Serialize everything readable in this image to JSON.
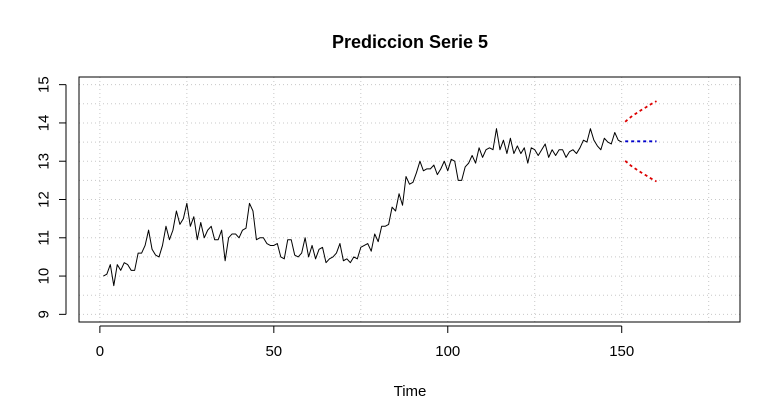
{
  "chart_data": {
    "type": "line",
    "title": "Prediccion Serie 5",
    "xlabel": "Time",
    "ylabel": "",
    "xlim": [
      -6,
      184
    ],
    "ylim": [
      8.8,
      15.2
    ],
    "xticks": [
      0,
      50,
      100,
      150
    ],
    "yticks": [
      9,
      10,
      11,
      12,
      13,
      14,
      15
    ],
    "grid": true,
    "colors": {
      "series": "#000000",
      "forecast": "#0000cc",
      "interval": "#dd0000",
      "grid": "#c8c8c8"
    },
    "series": [
      {
        "x": [
          1,
          2,
          3,
          4,
          5,
          6,
          7,
          8,
          9,
          10,
          11,
          12,
          13,
          14,
          15,
          16,
          17,
          18,
          19,
          20,
          21,
          22,
          23,
          24,
          25,
          26,
          27,
          28,
          29,
          30,
          31,
          32,
          33,
          34,
          35,
          36,
          37,
          38,
          39,
          40,
          41,
          42,
          43,
          44,
          45,
          46,
          47,
          48,
          49,
          50,
          51,
          52,
          53,
          54,
          55,
          56,
          57,
          58,
          59,
          60,
          61,
          62,
          63,
          64,
          65,
          66,
          67,
          68,
          69,
          70,
          71,
          72,
          73,
          74,
          75,
          76,
          77,
          78,
          79,
          80,
          81,
          82,
          83,
          84,
          85,
          86,
          87,
          88,
          89,
          90,
          91,
          92,
          93,
          94,
          95,
          96,
          97,
          98,
          99,
          100,
          101,
          102,
          103,
          104,
          105,
          106,
          107,
          108,
          109,
          110,
          111,
          112,
          113,
          114,
          115,
          116,
          117,
          118,
          119,
          120,
          121,
          122,
          123,
          124,
          125,
          126,
          127,
          128,
          129,
          130,
          131,
          132,
          133,
          134,
          135,
          136,
          137,
          138,
          139,
          140,
          141,
          142,
          143,
          144,
          145,
          146,
          147,
          148,
          149,
          150
        ],
        "values": [
          10.0,
          10.05,
          10.3,
          9.75,
          10.3,
          10.15,
          10.35,
          10.3,
          10.15,
          10.15,
          10.6,
          10.6,
          10.8,
          11.2,
          10.7,
          10.55,
          10.5,
          10.8,
          11.3,
          10.95,
          11.2,
          11.7,
          11.35,
          11.5,
          11.9,
          11.3,
          11.55,
          10.95,
          11.4,
          11.0,
          11.2,
          11.3,
          10.95,
          10.95,
          11.2,
          10.4,
          11.0,
          11.1,
          11.1,
          11.0,
          11.2,
          11.25,
          11.9,
          11.7,
          10.95,
          11.0,
          11.0,
          10.85,
          10.8,
          10.8,
          10.85,
          10.5,
          10.45,
          10.95,
          10.95,
          10.55,
          10.5,
          10.6,
          11.0,
          10.5,
          10.8,
          10.45,
          10.7,
          10.75,
          10.35,
          10.45,
          10.5,
          10.6,
          10.85,
          10.4,
          10.45,
          10.35,
          10.5,
          10.45,
          10.75,
          10.8,
          10.85,
          10.65,
          11.1,
          10.9,
          11.3,
          11.3,
          11.35,
          11.8,
          11.7,
          12.15,
          11.85,
          12.6,
          12.4,
          12.45,
          12.7,
          13.0,
          12.75,
          12.8,
          12.8,
          12.9,
          12.65,
          12.8,
          13.0,
          12.75,
          13.05,
          13.0,
          12.5,
          12.5,
          12.85,
          12.95,
          13.15,
          12.95,
          13.35,
          13.1,
          13.3,
          13.35,
          13.3,
          13.85,
          13.3,
          13.55,
          13.2,
          13.6,
          13.2,
          13.4,
          13.2,
          13.35,
          12.95,
          13.35,
          13.3,
          13.15,
          13.3,
          13.45,
          13.1,
          13.3,
          13.15,
          13.3,
          13.3,
          13.1,
          13.25,
          13.3,
          13.2,
          13.35,
          13.55,
          13.5,
          13.85,
          13.55,
          13.4,
          13.3,
          13.6,
          13.5,
          13.45,
          13.75,
          13.55,
          13.5
        ]
      },
      {
        "x": [
          151,
          152,
          153,
          154,
          155,
          156,
          157,
          158,
          159,
          160
        ],
        "values": [
          13.52,
          13.52,
          13.52,
          13.52,
          13.52,
          13.52,
          13.52,
          13.52,
          13.52,
          13.52
        ]
      },
      {
        "x": [
          151,
          152,
          153,
          154,
          155,
          156,
          157,
          158,
          159,
          160
        ],
        "values": [
          14.03,
          14.11,
          14.18,
          14.24,
          14.3,
          14.36,
          14.41,
          14.47,
          14.52,
          14.57
        ]
      },
      {
        "x": [
          151,
          152,
          153,
          154,
          155,
          156,
          157,
          158,
          159,
          160
        ],
        "values": [
          13.01,
          12.93,
          12.86,
          12.8,
          12.74,
          12.68,
          12.63,
          12.57,
          12.52,
          12.47
        ]
      }
    ]
  }
}
